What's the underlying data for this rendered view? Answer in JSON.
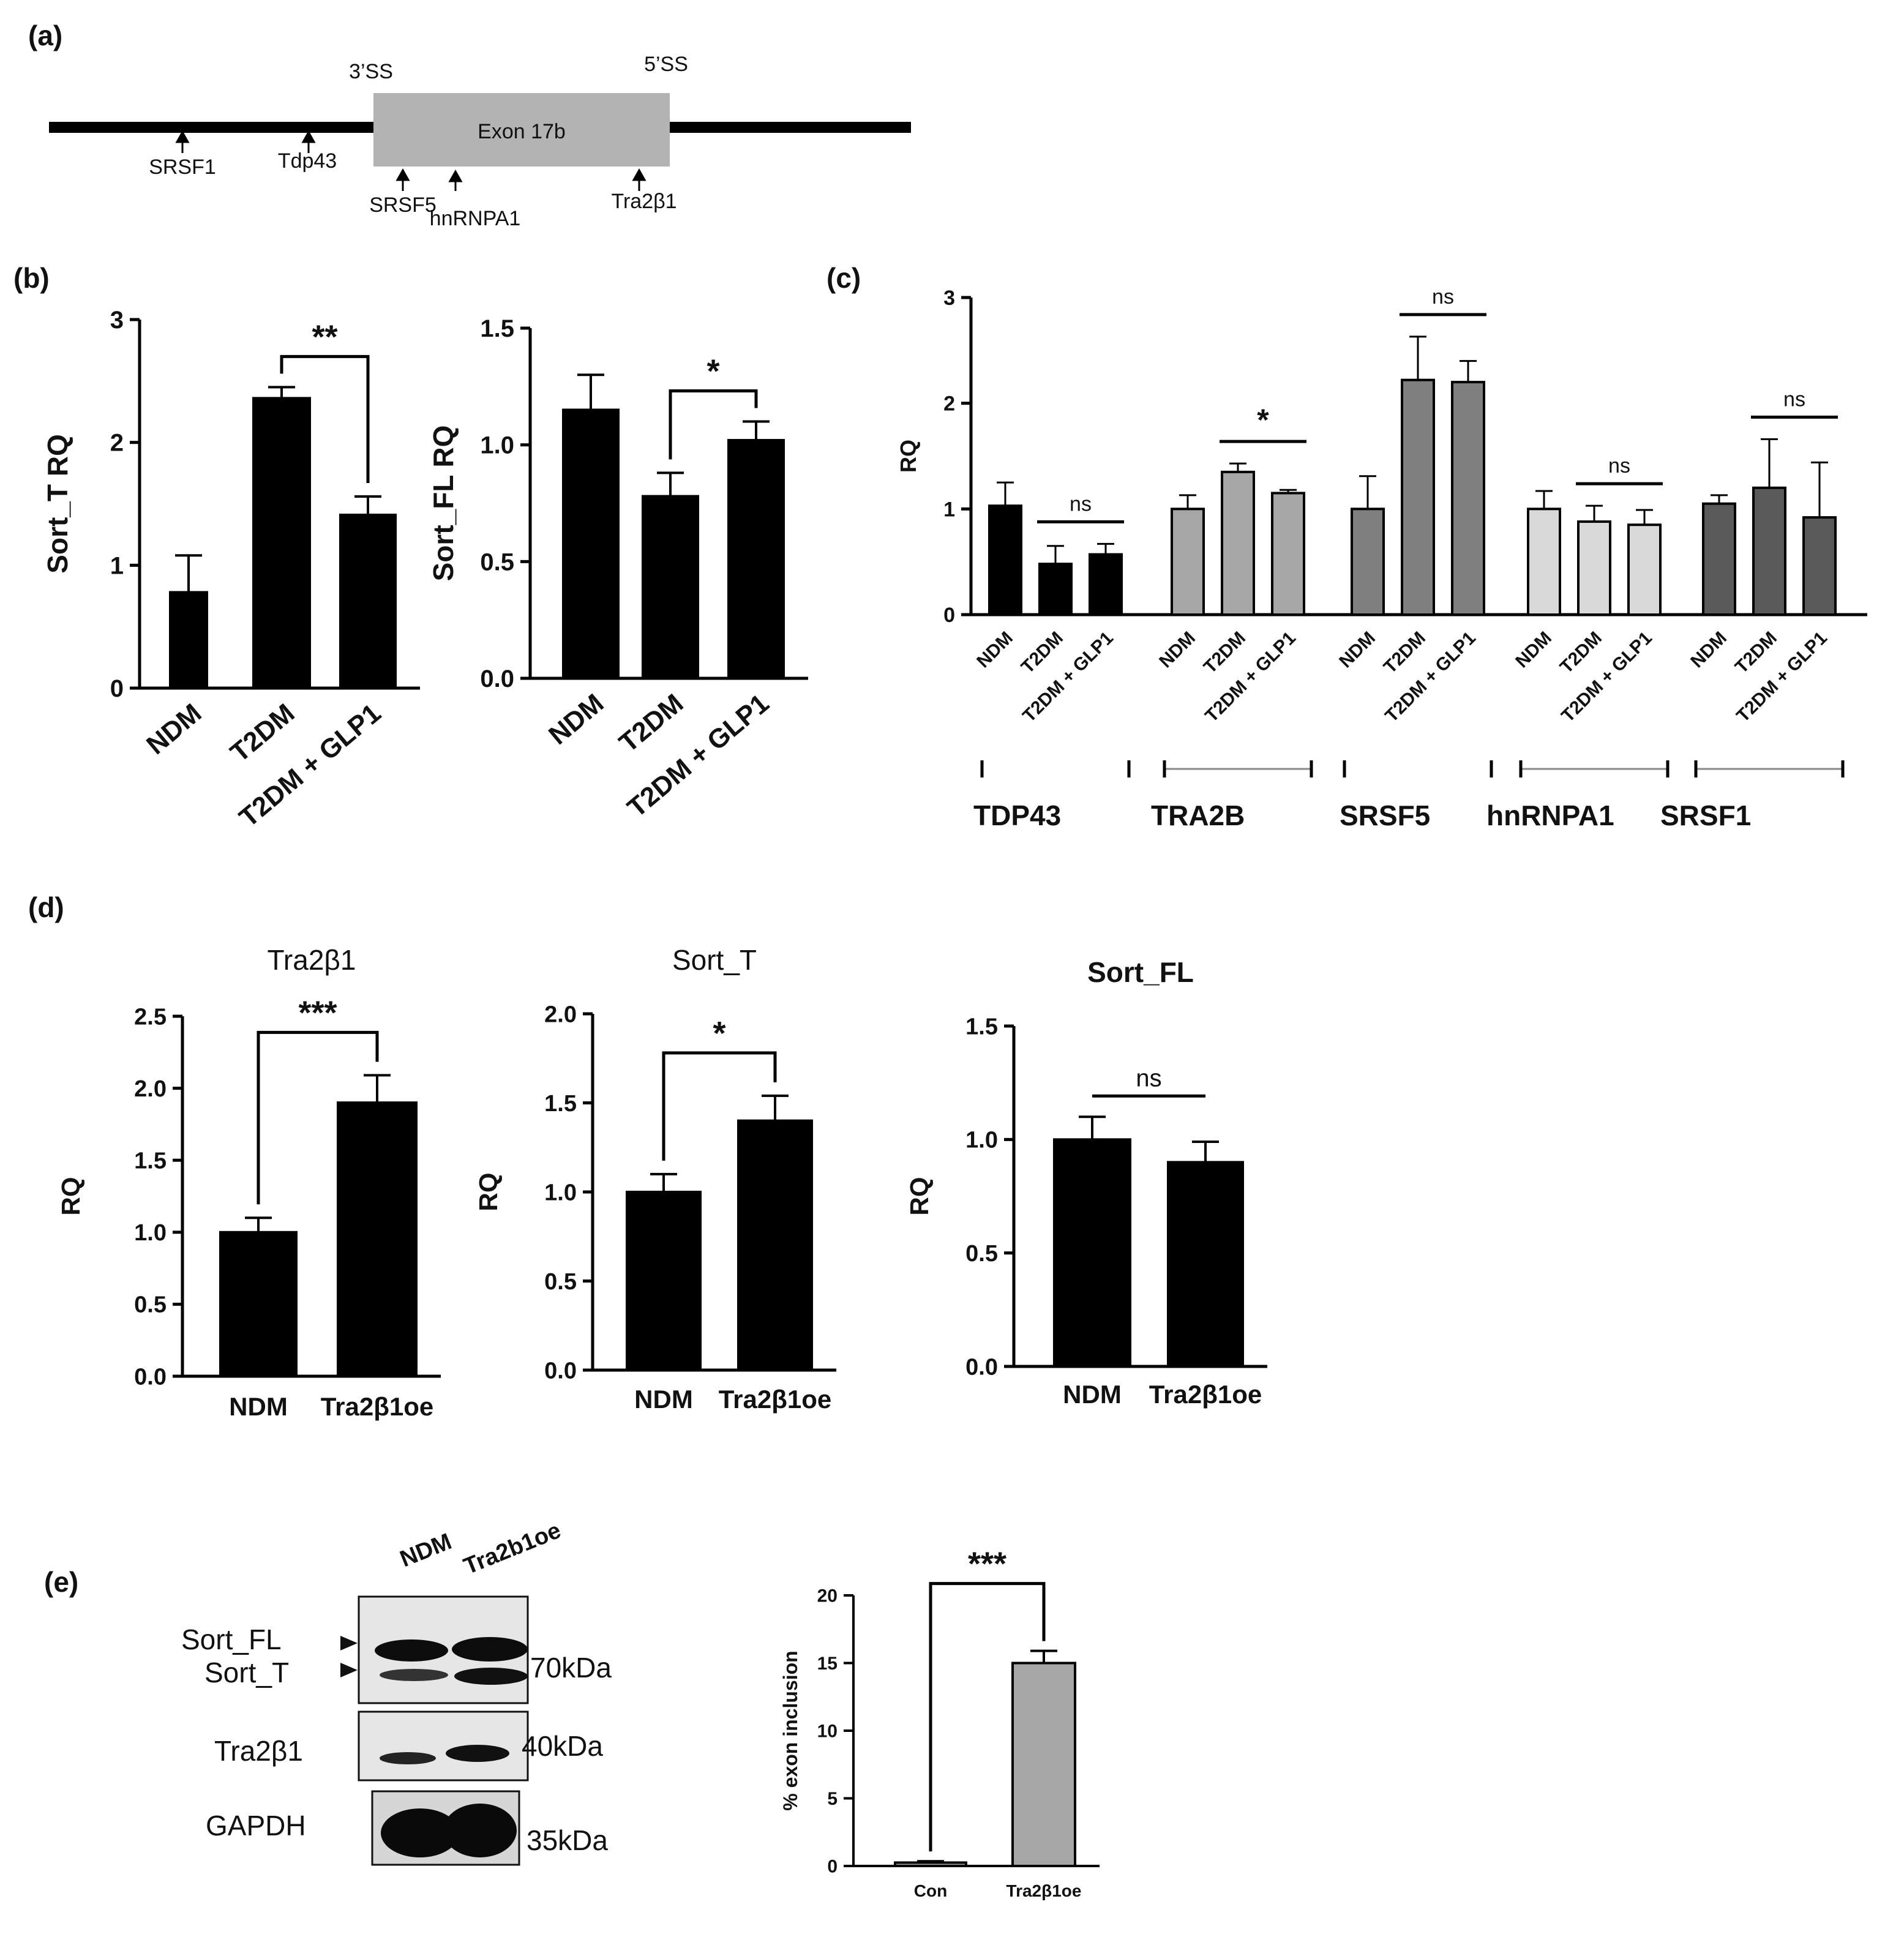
{
  "panel_labels": [
    "(a)",
    "(b)",
    "(c)",
    "(d)",
    "(e)"
  ],
  "diagram": {
    "exon_label": "Exon 17b",
    "splice_site_3": "3’SS",
    "splice_site_5": "5’SS",
    "binding_sites": [
      "SRSF1",
      "Tdp43",
      "SRSF5",
      "hnRNPA1",
      "Tra2β1"
    ]
  },
  "colors": {
    "black": "#000000",
    "light_gray": "#d9d9d9",
    "mid_gray": "#a6a6a6",
    "dark_gray": "#7f7f7f",
    "darker_gray": "#595959",
    "exon_box": "#b3b3b3",
    "blot_bg": "#e6e6e6"
  },
  "chart_data": [
    {
      "id": "b1",
      "type": "bar",
      "ylabel": "Sort_T RQ",
      "ylim": [
        0,
        3
      ],
      "yticks": [
        "0",
        "1",
        "2",
        "3"
      ],
      "categories": [
        "NDM",
        "T2DM",
        "T2DM + GLP1"
      ],
      "values": [
        0.78,
        2.36,
        1.41
      ],
      "errors": [
        0.3,
        0.09,
        0.15
      ],
      "significance": [
        {
          "from": 1,
          "to": 2,
          "label": "**"
        }
      ]
    },
    {
      "id": "b2",
      "type": "bar",
      "ylabel": "Sort_FL  RQ",
      "ylim": [
        0,
        1.5
      ],
      "yticks": [
        "0.0",
        "0.5",
        "1.0",
        "1.5"
      ],
      "categories": [
        "NDM",
        "T2DM",
        "T2DM + GLP1"
      ],
      "values": [
        1.15,
        0.78,
        1.02
      ],
      "errors": [
        0.15,
        0.1,
        0.08
      ],
      "significance": [
        {
          "from": 1,
          "to": 2,
          "label": "*"
        }
      ]
    },
    {
      "id": "c",
      "type": "bar",
      "ylabel": "RQ",
      "ylim": [
        0,
        3
      ],
      "yticks": [
        "0",
        "1",
        "2",
        "3"
      ],
      "groups": [
        {
          "name": "TDP43",
          "color": "#000000",
          "categories": [
            "NDM",
            "T2DM",
            "T2DM + GLP1"
          ],
          "values": [
            1.03,
            0.48,
            0.57
          ],
          "errors": [
            0.22,
            0.17,
            0.1
          ],
          "significance": {
            "label": "ns"
          }
        },
        {
          "name": "TRA2B",
          "color": "#a6a6a6",
          "categories": [
            "NDM",
            "T2DM",
            "T2DM + GLP1"
          ],
          "values": [
            1.0,
            1.35,
            1.15
          ],
          "errors": [
            0.13,
            0.08,
            0.03
          ],
          "significance": {
            "label": "*"
          }
        },
        {
          "name": "SRSF5",
          "color": "#7f7f7f",
          "categories": [
            "NDM",
            "T2DM",
            "T2DM + GLP1"
          ],
          "values": [
            1.0,
            2.22,
            2.2
          ],
          "errors": [
            0.31,
            0.41,
            0.2
          ],
          "significance": {
            "label": "ns"
          }
        },
        {
          "name": "hnRNPA1",
          "color": "#d9d9d9",
          "categories": [
            "NDM",
            "T2DM",
            "T2DM + GLP1"
          ],
          "values": [
            1.0,
            0.88,
            0.85
          ],
          "errors": [
            0.17,
            0.15,
            0.14
          ],
          "significance": {
            "label": "ns"
          }
        },
        {
          "name": "SRSF1",
          "color": "#595959",
          "categories": [
            "NDM",
            "T2DM",
            "T2DM + GLP1"
          ],
          "values": [
            1.05,
            1.2,
            0.92
          ],
          "errors": [
            0.08,
            0.46,
            0.52
          ],
          "significance": {
            "label": "ns"
          }
        }
      ]
    },
    {
      "id": "d1",
      "type": "bar",
      "title": "Tra2β1",
      "ylabel": "RQ",
      "ylim": [
        0,
        2.5
      ],
      "yticks": [
        "0.0",
        "0.5",
        "1.0",
        "1.5",
        "2.0",
        "2.5"
      ],
      "categories": [
        "NDM",
        "Tra2β1oe"
      ],
      "values": [
        1.0,
        1.9
      ],
      "errors": [
        0.1,
        0.19
      ],
      "significance": [
        {
          "from": 0,
          "to": 1,
          "label": "***"
        }
      ]
    },
    {
      "id": "d2",
      "type": "bar",
      "title": "Sort_T",
      "ylabel": "RQ",
      "ylim": [
        0,
        2.0
      ],
      "yticks": [
        "0.0",
        "0.5",
        "1.0",
        "1.5",
        "2.0"
      ],
      "categories": [
        "NDM",
        "Tra2β1oe"
      ],
      "values": [
        1.0,
        1.4
      ],
      "errors": [
        0.1,
        0.14
      ],
      "significance": [
        {
          "from": 0,
          "to": 1,
          "label": "*"
        }
      ]
    },
    {
      "id": "d3",
      "type": "bar",
      "title": "Sort_FL",
      "ylabel": "RQ",
      "ylim": [
        0,
        1.5
      ],
      "yticks": [
        "0.0",
        "0.5",
        "1.0",
        "1.5"
      ],
      "categories": [
        "NDM",
        "Tra2β1oe"
      ],
      "values": [
        1.0,
        0.9
      ],
      "errors": [
        0.1,
        0.09
      ],
      "significance": [
        {
          "from": 0,
          "to": 1,
          "label": "ns"
        }
      ]
    },
    {
      "id": "e",
      "type": "bar",
      "ylabel": "% exon inclusion",
      "ylim": [
        0,
        20
      ],
      "yticks": [
        "0",
        "5",
        "10",
        "15",
        "20"
      ],
      "categories": [
        "Con",
        "Tra2β1oe"
      ],
      "values": [
        0.25,
        15.0
      ],
      "errors": [
        0.1,
        0.9
      ],
      "significance": [
        {
          "from": 0,
          "to": 1,
          "label": "***"
        }
      ]
    }
  ],
  "western_blot": {
    "lanes": [
      "NDM",
      "Tra2b1oe"
    ],
    "bands": [
      "Sort_FL",
      "Sort_T",
      "Tra2β1",
      "GAPDH"
    ],
    "sizes": [
      "70kDa",
      "40kDa",
      "35kDa"
    ]
  }
}
